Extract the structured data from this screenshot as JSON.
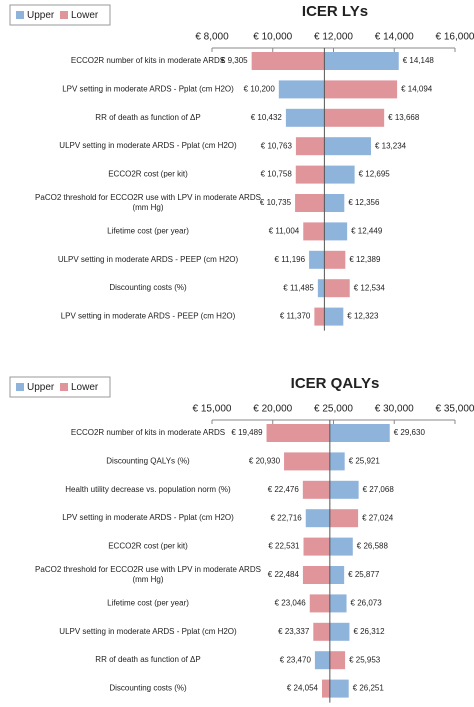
{
  "chart_data": [
    {
      "type": "tornado",
      "title": "ICER LYs",
      "categories": [
        "ECCO2R number of kits in moderate ARDS",
        "LPV setting in moderate ARDS - Pplat (cm H2O)",
        "RR of death as function of ΔP",
        "ULPV setting in moderate ARDS - Pplat (cm H2O)",
        "ECCO2R cost (per kit)",
        "PaCO2 threshold for ECCO2R use with LPV in moderate ARDS (mm Hg)",
        "Lifetime cost (per year)",
        "ULPV setting in moderate ARDS - PEEP (cm H2O)",
        "Discounting costs (%)",
        "LPV setting in moderate ARDS - PEEP (cm H2O)"
      ],
      "series": [
        {
          "name": "Upper",
          "color": "#8fb4dc",
          "values": [
            14148,
            10200,
            10432,
            13234,
            12695,
            12356,
            12449,
            11196,
            11485,
            12323
          ],
          "value_labels": [
            "€ 14,148",
            "€ 10,200",
            "€ 10,432",
            "€ 13,234",
            "€ 12,695",
            "€ 12,356",
            "€ 12,449",
            "€ 11,196",
            "€ 11,485",
            "€ 12,323"
          ]
        },
        {
          "name": "Lower",
          "color": "#e0959b",
          "values": [
            9305,
            14094,
            13668,
            10763,
            10758,
            10735,
            11004,
            12389,
            12534,
            11370
          ],
          "value_labels": [
            "€ 9,305",
            "€ 14,094",
            "€ 13,668",
            "€ 10,763",
            "€ 10,758",
            "€ 10,735",
            "€ 11,004",
            "€ 12,389",
            "€ 12,534",
            "€ 11,370"
          ]
        }
      ],
      "base": 11700,
      "xlim": [
        8000,
        16000
      ],
      "xticks": [
        {
          "value": 8000,
          "label": "€ 8,000"
        },
        {
          "value": 10000,
          "label": "€ 10,000"
        },
        {
          "value": 12000,
          "label": "€ 12,000"
        },
        {
          "value": 14000,
          "label": "€ 14,000"
        },
        {
          "value": 16000,
          "label": "€ 16,000"
        }
      ],
      "legend": "upper left"
    },
    {
      "type": "tornado",
      "title": "ICER QALYs",
      "categories": [
        "ECCO2R number of kits in moderate ARDS",
        "Discounting QALYs (%)",
        "Health utility decrease vs. population norm (%)",
        "LPV setting in moderate ARDS - Pplat (cm H2O)",
        "ECCO2R cost (per kit)",
        "PaCO2 threshold for ECCO2R use with LPV in moderate ARDS (mm Hg)",
        "Lifetime cost (per year)",
        "ULPV setting in moderate ARDS - Pplat (cm H2O)",
        "RR of death as function of ΔP",
        "Discounting costs (%)"
      ],
      "series": [
        {
          "name": "Upper",
          "color": "#8fb4dc",
          "values": [
            29630,
            25921,
            27068,
            22716,
            26588,
            25877,
            26073,
            26312,
            23470,
            26251
          ],
          "value_labels": [
            "€ 29,630",
            "€ 25,921",
            "€ 27,068",
            "€ 22,716",
            "€ 26,588",
            "€ 25,877",
            "€ 26,073",
            "€ 26,312",
            "€ 23,470",
            "€ 26,251"
          ]
        },
        {
          "name": "Lower",
          "color": "#e0959b",
          "values": [
            19489,
            20930,
            22476,
            27024,
            22531,
            22484,
            23046,
            23337,
            25953,
            24054
          ],
          "value_labels": [
            "€ 19,489",
            "€ 20,930",
            "€ 22,476",
            "€ 27,024",
            "€ 22,531",
            "€ 22,484",
            "€ 23,046",
            "€ 23,337",
            "€ 25,953",
            "€ 24,054"
          ]
        }
      ],
      "base": 24700,
      "xlim": [
        15000,
        35000
      ],
      "xticks": [
        {
          "value": 15000,
          "label": "€ 15,000"
        },
        {
          "value": 20000,
          "label": "€ 20,000"
        },
        {
          "value": 25000,
          "label": "€ 25,000"
        },
        {
          "value": 30000,
          "label": "€ 30,000"
        },
        {
          "value": 35000,
          "label": "€ 35,000"
        }
      ],
      "legend": "upper left"
    }
  ]
}
